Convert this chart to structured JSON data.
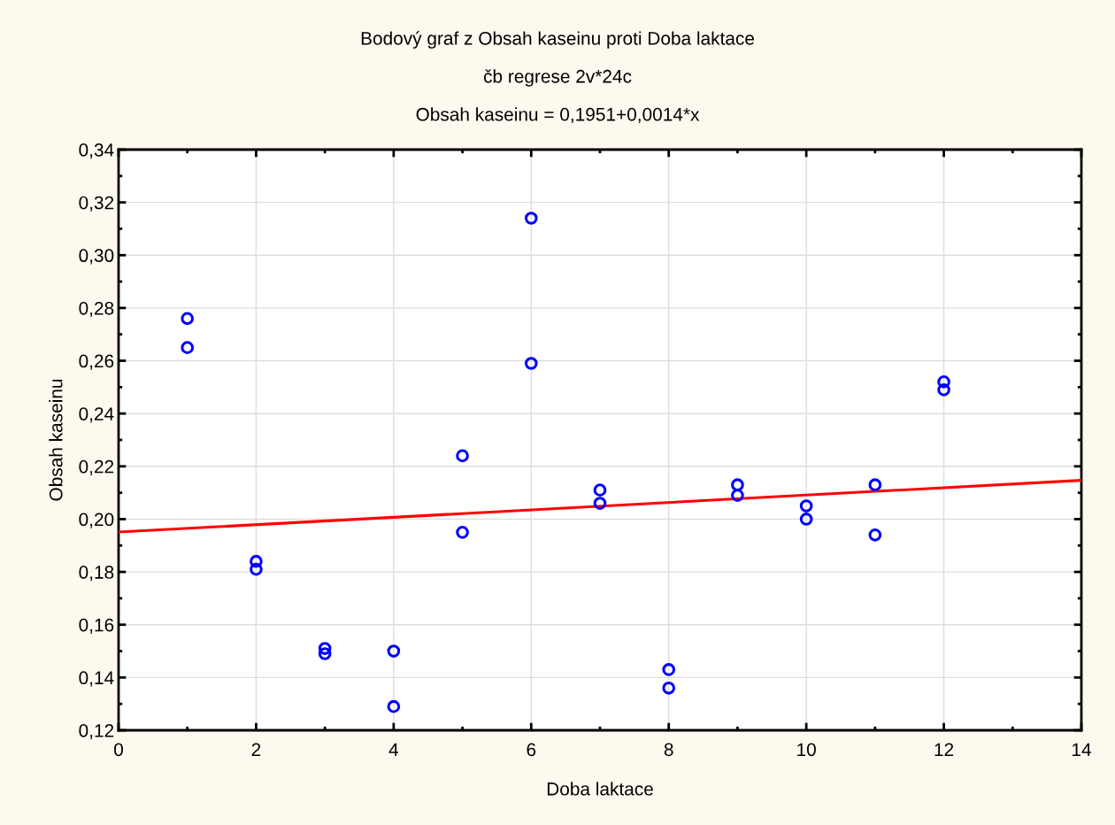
{
  "chart_data": {
    "type": "scatter",
    "title": "Bodový graf z Obsah kaseinu proti Doba laktace",
    "subtitle": "čb regrese 2v*24c",
    "annotations": [
      "Obsah kaseinu = 0,1951+0,0014*x"
    ],
    "xlabel": "Doba laktace",
    "ylabel": "Obsah kaseinu",
    "series": [
      {
        "color": "#0000ff",
        "marker": "circle",
        "x": [
          1,
          1,
          2,
          2,
          3,
          3,
          4,
          4,
          5,
          5,
          6,
          6,
          7,
          7,
          8,
          8,
          9,
          9,
          10,
          10,
          11,
          11,
          12,
          12
        ],
        "values": [
          0.276,
          0.265,
          0.184,
          0.181,
          0.151,
          0.149,
          0.15,
          0.129,
          0.224,
          0.195,
          0.314,
          0.259,
          0.211,
          0.206,
          0.143,
          0.136,
          0.213,
          0.209,
          0.205,
          0.2,
          0.213,
          0.194,
          0.252,
          0.249
        ]
      },
      {
        "type": "line",
        "color": "#ff0000",
        "line_style": "solid",
        "x": [
          0,
          14
        ],
        "values": [
          0.1951,
          0.2147
        ]
      }
    ],
    "xlim": [
      0,
      14
    ],
    "xticks": [
      0,
      2,
      4,
      6,
      8,
      10,
      12,
      14
    ],
    "ylim": [
      0.12,
      0.34
    ],
    "yticks": [
      {
        "value": 0.12,
        "label": "0,12"
      },
      {
        "value": 0.14,
        "label": "0,14"
      },
      {
        "value": 0.16,
        "label": "0,16"
      },
      {
        "value": 0.18,
        "label": "0,18"
      },
      {
        "value": 0.2,
        "label": "0,20"
      },
      {
        "value": 0.22,
        "label": "0,22"
      },
      {
        "value": 0.24,
        "label": "0,24"
      },
      {
        "value": 0.26,
        "label": "0,26"
      },
      {
        "value": 0.28,
        "label": "0,28"
      },
      {
        "value": 0.3,
        "label": "0,30"
      },
      {
        "value": 0.32,
        "label": "0,32"
      },
      {
        "value": 0.34,
        "label": "0,34"
      }
    ],
    "grid": true
  }
}
